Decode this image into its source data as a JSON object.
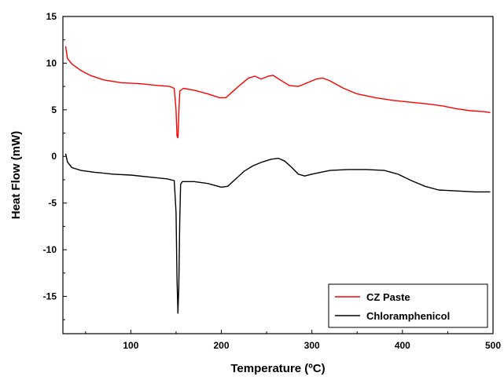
{
  "chart_data": {
    "type": "line",
    "xlabel": "Temperature (ºC)",
    "ylabel": "Heat Flow (mW)",
    "xlim": [
      25,
      500
    ],
    "ylim": [
      -19,
      15
    ],
    "x_ticks": [
      100,
      200,
      300,
      400,
      500
    ],
    "y_ticks": [
      15,
      10,
      5,
      0,
      -5,
      -10,
      -15
    ],
    "grid": false,
    "legend_position": "bottom-right",
    "series": [
      {
        "name": "CZ Paste",
        "color": "#ff0000",
        "points": [
          [
            28,
            11.8
          ],
          [
            30,
            10.5
          ],
          [
            35,
            9.9
          ],
          [
            45,
            9.2
          ],
          [
            55,
            8.7
          ],
          [
            70,
            8.2
          ],
          [
            90,
            7.9
          ],
          [
            110,
            7.8
          ],
          [
            130,
            7.6
          ],
          [
            143,
            7.5
          ],
          [
            148,
            7.3
          ],
          [
            150,
            5.0
          ],
          [
            151,
            2.2
          ],
          [
            152,
            2.0
          ],
          [
            153,
            4.5
          ],
          [
            154,
            7.0
          ],
          [
            158,
            7.3
          ],
          [
            170,
            7.1
          ],
          [
            185,
            6.7
          ],
          [
            198,
            6.3
          ],
          [
            205,
            6.3
          ],
          [
            212,
            6.9
          ],
          [
            220,
            7.6
          ],
          [
            230,
            8.4
          ],
          [
            237,
            8.6
          ],
          [
            244,
            8.3
          ],
          [
            252,
            8.6
          ],
          [
            257,
            8.7
          ],
          [
            265,
            8.2
          ],
          [
            275,
            7.6
          ],
          [
            285,
            7.5
          ],
          [
            295,
            7.9
          ],
          [
            305,
            8.3
          ],
          [
            312,
            8.4
          ],
          [
            320,
            8.1
          ],
          [
            335,
            7.3
          ],
          [
            350,
            6.7
          ],
          [
            370,
            6.3
          ],
          [
            390,
            6.0
          ],
          [
            410,
            5.8
          ],
          [
            430,
            5.6
          ],
          [
            445,
            5.4
          ],
          [
            460,
            5.1
          ],
          [
            475,
            4.9
          ],
          [
            490,
            4.8
          ],
          [
            497,
            4.7
          ]
        ]
      },
      {
        "name": "Chloramphenicol",
        "color": "#000000",
        "points": [
          [
            28,
            0.3
          ],
          [
            30,
            -0.6
          ],
          [
            35,
            -1.2
          ],
          [
            45,
            -1.5
          ],
          [
            60,
            -1.7
          ],
          [
            80,
            -1.9
          ],
          [
            100,
            -2.0
          ],
          [
            120,
            -2.2
          ],
          [
            140,
            -2.4
          ],
          [
            148,
            -2.6
          ],
          [
            150,
            -6.0
          ],
          [
            151,
            -13.0
          ],
          [
            152,
            -16.8
          ],
          [
            153,
            -14.0
          ],
          [
            154,
            -7.0
          ],
          [
            155,
            -3.0
          ],
          [
            157,
            -2.7
          ],
          [
            170,
            -2.7
          ],
          [
            185,
            -2.9
          ],
          [
            200,
            -3.3
          ],
          [
            207,
            -3.2
          ],
          [
            215,
            -2.5
          ],
          [
            225,
            -1.6
          ],
          [
            235,
            -1.0
          ],
          [
            245,
            -0.6
          ],
          [
            255,
            -0.3
          ],
          [
            263,
            -0.2
          ],
          [
            270,
            -0.5
          ],
          [
            278,
            -1.2
          ],
          [
            285,
            -1.9
          ],
          [
            292,
            -2.1
          ],
          [
            300,
            -1.9
          ],
          [
            310,
            -1.7
          ],
          [
            320,
            -1.5
          ],
          [
            340,
            -1.4
          ],
          [
            360,
            -1.4
          ],
          [
            380,
            -1.5
          ],
          [
            395,
            -1.9
          ],
          [
            410,
            -2.6
          ],
          [
            425,
            -3.2
          ],
          [
            440,
            -3.6
          ],
          [
            460,
            -3.7
          ],
          [
            480,
            -3.8
          ],
          [
            497,
            -3.8
          ]
        ]
      }
    ]
  }
}
